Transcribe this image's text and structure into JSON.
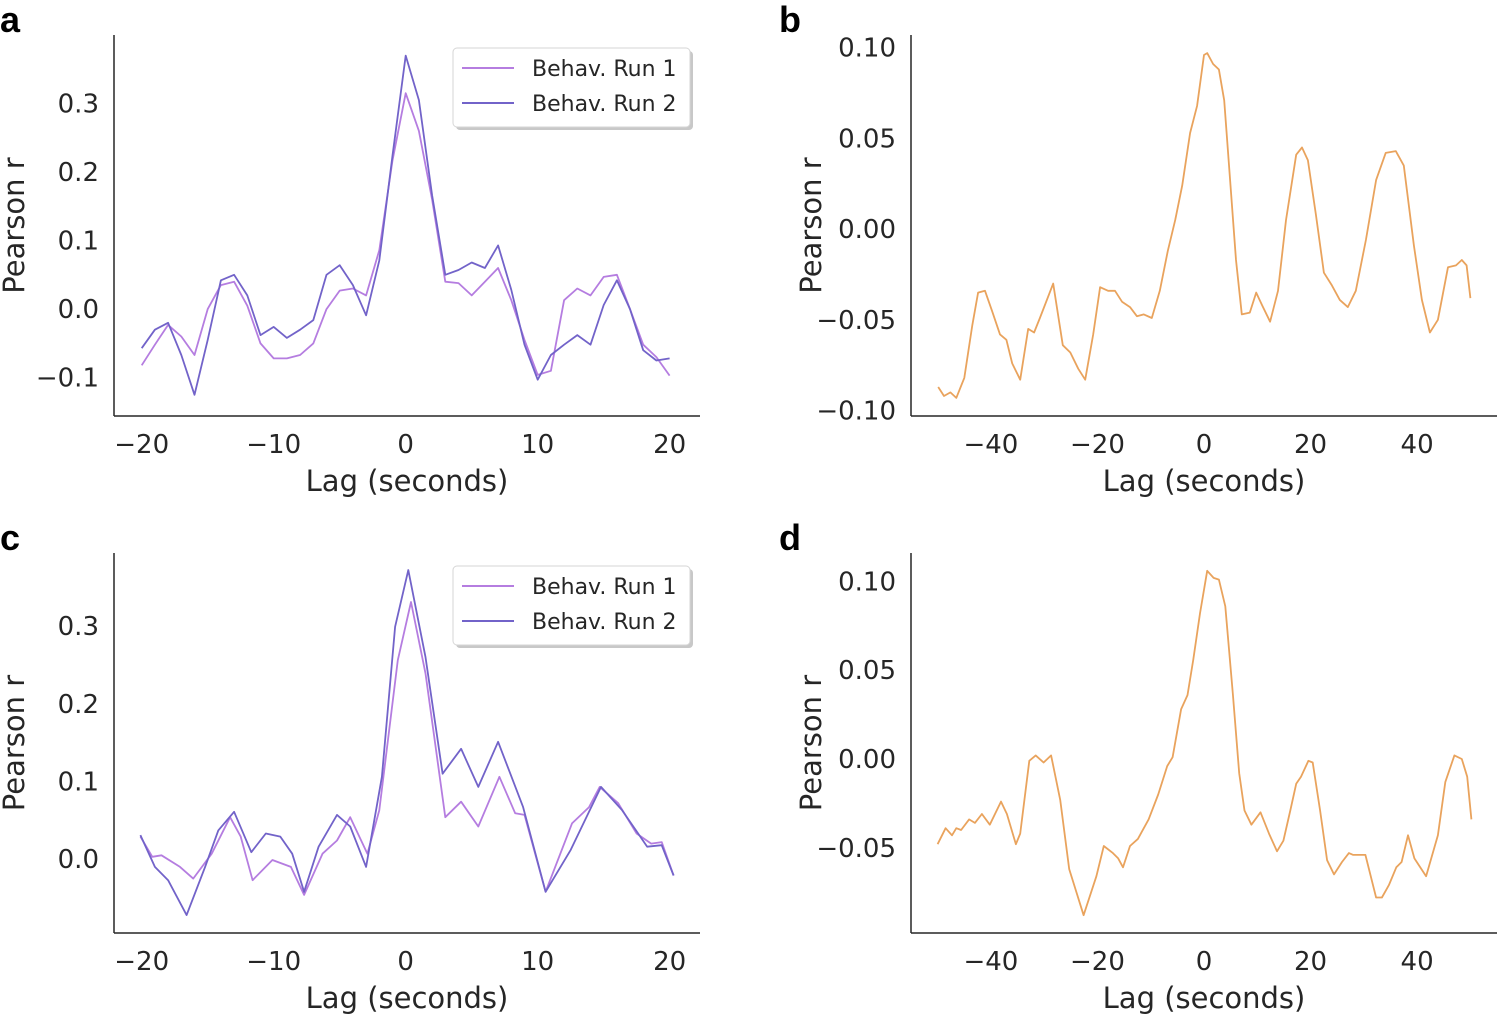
{
  "colors": {
    "run1": "#b57de0",
    "run2": "#7263c9",
    "orange": "#e9a35d",
    "axis": "#262626"
  },
  "chart_data": [
    {
      "panel": "a",
      "type": "line",
      "title": "",
      "xlabel": "Lag (seconds)",
      "ylabel": "Pearson r",
      "xlim": [
        -22.1,
        22.3
      ],
      "ylim": [
        -0.156,
        0.4
      ],
      "xticks": [
        -20,
        -10,
        0,
        10,
        20
      ],
      "xtick_labels": [
        "−20",
        "−10",
        "0",
        "10",
        "20"
      ],
      "yticks": [
        -0.1,
        0.0,
        0.1,
        0.2,
        0.3
      ],
      "ytick_labels": [
        "−0.1",
        "0.0",
        "0.1",
        "0.2",
        "0.3"
      ],
      "grid": false,
      "legend": "top-right",
      "x": [
        -20,
        -19,
        -18,
        -17,
        -16,
        -15,
        -14,
        -13,
        -12,
        -11,
        -10,
        -9,
        -8,
        -7,
        -6,
        -5,
        -4,
        -3,
        -2,
        -1,
        0,
        1,
        2,
        3,
        4,
        5,
        6,
        7,
        8,
        9,
        10,
        11,
        12,
        13,
        14,
        15,
        16,
        17,
        18,
        19,
        20
      ],
      "series": [
        {
          "name": "Behav. Run 1",
          "color_key": "run1",
          "values": [
            -0.082,
            -0.052,
            -0.023,
            -0.04,
            -0.067,
            0,
            0.035,
            0.04,
            0.005,
            -0.05,
            -0.072,
            -0.072,
            -0.067,
            -0.05,
            0,
            0.027,
            0.03,
            0.02,
            0.086,
            0.217,
            0.315,
            0.26,
            0.16,
            0.04,
            0.038,
            0.02,
            0.04,
            0.06,
            0.013,
            -0.045,
            -0.096,
            -0.09,
            0.013,
            0.03,
            0.02,
            0.047,
            0.05,
            0,
            -0.052,
            -0.07,
            -0.097
          ]
        },
        {
          "name": "Behav. Run 2",
          "color_key": "run2",
          "values": [
            -0.057,
            -0.03,
            -0.02,
            -0.067,
            -0.125,
            -0.045,
            0.042,
            0.05,
            0.02,
            -0.038,
            -0.026,
            -0.042,
            -0.03,
            -0.016,
            0.05,
            0.064,
            0.035,
            -0.009,
            0.071,
            0.224,
            0.37,
            0.305,
            0.166,
            0.05,
            0.057,
            0.068,
            0.06,
            0.093,
            0.028,
            -0.052,
            -0.103,
            -0.067,
            -0.052,
            -0.038,
            -0.052,
            0.006,
            0.042,
            0,
            -0.06,
            -0.075,
            -0.072
          ]
        }
      ]
    },
    {
      "panel": "b",
      "type": "line",
      "title": "",
      "xlabel": "Lag (seconds)",
      "ylabel": "Pearson r",
      "xlim": [
        -55,
        55
      ],
      "ylim": [
        -0.103,
        0.107
      ],
      "xticks": [
        -40,
        -20,
        0,
        20,
        40
      ],
      "xtick_labels": [
        "−40",
        "−20",
        "0",
        "20",
        "40"
      ],
      "yticks": [
        -0.1,
        -0.05,
        0.0,
        0.05,
        0.1
      ],
      "ytick_labels": [
        "−0.10",
        "−0.05",
        "0.00",
        "0.05",
        "0.10"
      ],
      "grid": false,
      "series": [
        {
          "name": "",
          "color_key": "orange",
          "x": [
            -49.9,
            -48.8,
            -47.6,
            -46.5,
            -45,
            -43.5,
            -42.4,
            -41.1,
            -39.8,
            -38.3,
            -37.1,
            -36,
            -34.5,
            -33,
            -31.9,
            -30.8,
            -28.3,
            -26.5,
            -25.1,
            -23.6,
            -22.3,
            -20.8,
            -19.5,
            -18,
            -16.7,
            -15.4,
            -13.9,
            -12.6,
            -11.3,
            -9.8,
            -8.3,
            -6.8,
            -5.4,
            -4.1,
            -2.6,
            -1.3,
            0,
            0.6,
            1.7,
            2.8,
            3.8,
            4.9,
            6,
            7.1,
            8.6,
            9.8,
            10.9,
            12.4,
            13.9,
            15.4,
            17.3,
            18.4,
            19.5,
            21,
            22.5,
            24,
            25.5,
            27,
            28.5,
            30.4,
            32.3,
            34.1,
            36,
            37.5,
            39.4,
            40.9,
            42.4,
            43.9,
            45.8,
            47.3,
            48.4,
            49.3,
            50
          ],
          "values": [
            -0.087,
            -0.092,
            -0.09,
            -0.093,
            -0.082,
            -0.053,
            -0.035,
            -0.034,
            -0.045,
            -0.058,
            -0.061,
            -0.074,
            -0.083,
            -0.055,
            -0.057,
            -0.049,
            -0.03,
            -0.064,
            -0.068,
            -0.077,
            -0.083,
            -0.058,
            -0.032,
            -0.034,
            -0.034,
            -0.04,
            -0.043,
            -0.048,
            -0.047,
            -0.049,
            -0.034,
            -0.012,
            0.005,
            0.024,
            0.053,
            0.068,
            0.096,
            0.097,
            0.091,
            0.088,
            0.071,
            0.027,
            -0.017,
            -0.047,
            -0.046,
            -0.035,
            -0.042,
            -0.051,
            -0.034,
            0.005,
            0.041,
            0.045,
            0.038,
            0.008,
            -0.024,
            -0.031,
            -0.039,
            -0.043,
            -0.034,
            -0.006,
            0.027,
            0.042,
            0.043,
            0.035,
            -0.009,
            -0.039,
            -0.057,
            -0.05,
            -0.021,
            -0.02,
            -0.017,
            -0.02,
            -0.038
          ]
        }
      ]
    },
    {
      "panel": "c",
      "type": "line",
      "title": "",
      "xlabel": "Lag (seconds)",
      "ylabel": "Pearson r",
      "xlim": [
        -22.1,
        22.3
      ],
      "ylim": [
        -0.095,
        0.394
      ],
      "xticks": [
        -20,
        -10,
        0,
        10,
        20
      ],
      "xtick_labels": [
        "−20",
        "−10",
        "0",
        "10",
        "20"
      ],
      "yticks": [
        0.0,
        0.1,
        0.2,
        0.3
      ],
      "ytick_labels": [
        "0.0",
        "0.1",
        "0.2",
        "0.3"
      ],
      "grid": false,
      "legend": "top-right",
      "series": [
        {
          "name": "Behav. Run 1",
          "color_key": "run1",
          "x": [
            -20.1,
            -19.2,
            -18.5,
            -17.1,
            -16.1,
            -14.7,
            -13.3,
            -12.5,
            -11.6,
            -10.1,
            -8.7,
            -7.7,
            -6.3,
            -5.2,
            -4.2,
            -2.9,
            -2,
            -0.6,
            0.4,
            1.5,
            3,
            4.2,
            5.5,
            7.1,
            8.3,
            9,
            10.6,
            12.6,
            13.9,
            14.7,
            16.1,
            17.5,
            18.6,
            19.4,
            20.3
          ],
          "values": [
            0.029,
            0.003,
            0.005,
            -0.01,
            -0.025,
            0.007,
            0.054,
            0.029,
            -0.027,
            -0.001,
            -0.01,
            -0.046,
            0.007,
            0.024,
            0.054,
            0.007,
            0.063,
            0.256,
            0.331,
            0.239,
            0.054,
            0.074,
            0.042,
            0.106,
            0.059,
            0.057,
            -0.042,
            0.046,
            0.067,
            0.093,
            0.072,
            0.033,
            0.02,
            0.022,
            -0.021
          ]
        },
        {
          "name": "Behav. Run 2",
          "color_key": "run2",
          "x": [
            -20.1,
            -19,
            -18,
            -16.6,
            -15.2,
            -14.2,
            -13,
            -11.7,
            -10.6,
            -9.5,
            -8.6,
            -7.7,
            -6.6,
            -5.2,
            -4.2,
            -3,
            -1.8,
            -0.8,
            0.2,
            1.5,
            2.8,
            4.2,
            5.5,
            7,
            8.9,
            10.6,
            12.5,
            14.8,
            16.4,
            18.3,
            19.4,
            20.3
          ],
          "values": [
            0.031,
            -0.01,
            -0.027,
            -0.072,
            -0.01,
            0.037,
            0.061,
            0.009,
            0.033,
            0.029,
            0.007,
            -0.042,
            0.016,
            0.057,
            0.042,
            -0.01,
            0.106,
            0.299,
            0.372,
            0.26,
            0.11,
            0.142,
            0.093,
            0.151,
            0.067,
            -0.042,
            0.012,
            0.093,
            0.063,
            0.016,
            0.018,
            -0.021
          ]
        }
      ]
    },
    {
      "panel": "d",
      "type": "line",
      "title": "",
      "xlabel": "Lag (seconds)",
      "ylabel": "Pearson r",
      "xlim": [
        -55,
        55
      ],
      "ylim": [
        -0.098,
        0.116
      ],
      "xticks": [
        -40,
        -20,
        0,
        20,
        40
      ],
      "xtick_labels": [
        "−40",
        "−20",
        "0",
        "20",
        "40"
      ],
      "yticks": [
        -0.05,
        0.0,
        0.05,
        0.1
      ],
      "ytick_labels": [
        "−0.05",
        "0.00",
        "0.05",
        "0.10"
      ],
      "grid": false,
      "series": [
        {
          "name": "",
          "color_key": "orange",
          "x": [
            -50,
            -48.5,
            -47.3,
            -46.5,
            -45.6,
            -44.1,
            -43,
            -41.7,
            -40.2,
            -38.1,
            -37,
            -35.3,
            -34.5,
            -32.8,
            -31.6,
            -30.1,
            -28.7,
            -27,
            -25.3,
            -22.6,
            -20.2,
            -18.8,
            -17.1,
            -16.1,
            -15.2,
            -13.9,
            -12.4,
            -10.4,
            -8.6,
            -6.9,
            -5.9,
            -4.3,
            -3.1,
            -2,
            -0.75,
            0.6,
            1.8,
            2.8,
            4,
            5.4,
            6.6,
            7.6,
            8.9,
            10.6,
            12.2,
            13.7,
            14.9,
            16.2,
            17.3,
            18.2,
            19.6,
            20.4,
            21.8,
            23.1,
            24.4,
            25.9,
            27.2,
            28,
            30.3,
            32.3,
            33.4,
            34.7,
            36.1,
            37.1,
            38.3,
            39.5,
            41.7,
            43.9,
            45.3,
            47,
            48.4,
            49.4,
            50.2
          ],
          "values": [
            -0.048,
            -0.039,
            -0.043,
            -0.039,
            -0.04,
            -0.034,
            -0.036,
            -0.031,
            -0.037,
            -0.024,
            -0.031,
            -0.048,
            -0.042,
            -0.001,
            0.002,
            -0.002,
            0.002,
            -0.023,
            -0.062,
            -0.088,
            -0.066,
            -0.049,
            -0.053,
            -0.056,
            -0.061,
            -0.049,
            -0.045,
            -0.034,
            -0.02,
            -0.004,
            0.001,
            0.028,
            0.036,
            0.056,
            0.082,
            0.106,
            0.102,
            0.101,
            0.086,
            0.037,
            -0.008,
            -0.029,
            -0.037,
            -0.03,
            -0.042,
            -0.052,
            -0.046,
            -0.029,
            -0.014,
            -0.01,
            -0.001,
            -0.002,
            -0.029,
            -0.057,
            -0.065,
            -0.058,
            -0.053,
            -0.054,
            -0.054,
            -0.078,
            -0.078,
            -0.071,
            -0.061,
            -0.058,
            -0.043,
            -0.056,
            -0.066,
            -0.043,
            -0.013,
            0.002,
            0,
            -0.01,
            -0.034
          ]
        }
      ]
    }
  ]
}
